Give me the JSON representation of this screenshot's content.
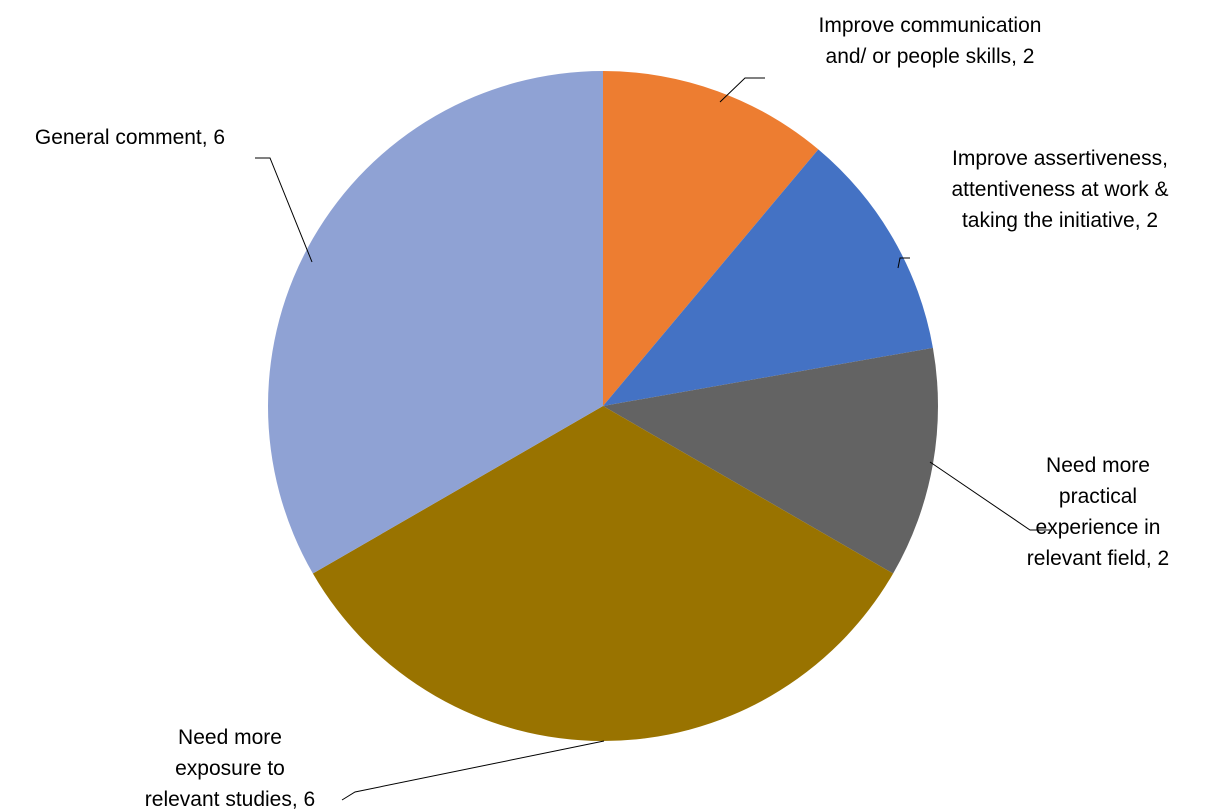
{
  "chart_data": {
    "type": "pie",
    "title": "",
    "slices": [
      {
        "label": "Improve communication and/ or people skills",
        "value": 2,
        "color": "#ED7D31",
        "label_lines": [
          "Improve communication",
          "and/ or people skills, 2"
        ]
      },
      {
        "label": "Improve assertiveness, attentiveness at work & taking the initiative",
        "value": 2,
        "color": "#4472C4",
        "label_lines": [
          "Improve assertiveness,",
          "attentiveness at work &",
          "taking the initiative, 2"
        ]
      },
      {
        "label": "Need more practical experience in relevant field",
        "value": 2,
        "color": "#636363",
        "label_lines": [
          "Need more",
          "practical",
          "experience in",
          "relevant field, 2"
        ]
      },
      {
        "label": "Need more exposure to relevant studies",
        "value": 6,
        "color": "#997300",
        "label_lines": [
          "Need more",
          "exposure to",
          "relevant studies, 6"
        ]
      },
      {
        "label": "General comment",
        "value": 6,
        "color": "#8FA2D4",
        "label_lines": [
          "General comment, 6"
        ]
      }
    ],
    "start_angle": "12 o'clock",
    "direction": "clockwise",
    "legend": "none",
    "data_labels": "category name and value, outside with leader lines"
  }
}
